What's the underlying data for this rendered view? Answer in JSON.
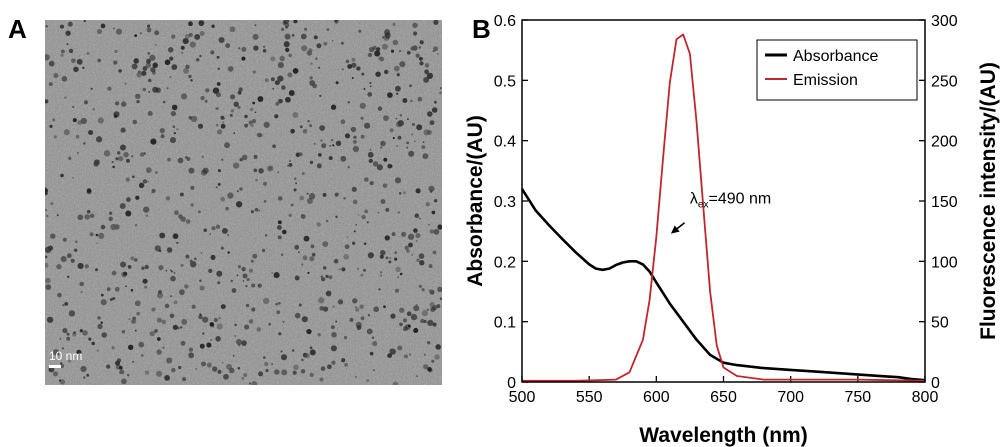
{
  "panels": {
    "a_label": "A",
    "b_label": "B"
  },
  "tem_image": {
    "scale_bar_text": "10 nm"
  },
  "chart_data": {
    "type": "line",
    "xlabel": "Wavelength (nm)",
    "ylabel_left": "Absorbance/(AU)",
    "ylabel_right": "Fluorescence intensity/(AU)",
    "xlim": [
      500,
      800
    ],
    "ylim_left": [
      0,
      0.6
    ],
    "ylim_right": [
      0,
      300
    ],
    "x_ticks": [
      500,
      550,
      600,
      650,
      700,
      750,
      800
    ],
    "y_left_ticks": [
      0,
      0.1,
      0.2,
      0.3,
      0.4,
      0.5,
      0.6
    ],
    "y_left_tick_labels": [
      "0",
      "0.1",
      "0.2",
      "0.3",
      "0.4",
      "0.5",
      "0.6"
    ],
    "y_right_ticks": [
      0,
      50,
      100,
      150,
      200,
      250,
      300
    ],
    "legend_position": "top-right",
    "annotation": {
      "text_main": "λ",
      "text_sub": "ex",
      "text_rest": "=490 nm"
    },
    "series": [
      {
        "name": "Absorbance",
        "axis": "left",
        "color": "#000000",
        "x": [
          500,
          510,
          520,
          530,
          540,
          550,
          555,
          560,
          565,
          570,
          575,
          580,
          585,
          590,
          595,
          600,
          610,
          620,
          630,
          640,
          650,
          660,
          680,
          700,
          720,
          740,
          760,
          780,
          790,
          800
        ],
        "y": [
          0.32,
          0.285,
          0.26,
          0.237,
          0.215,
          0.195,
          0.188,
          0.186,
          0.188,
          0.194,
          0.198,
          0.2,
          0.2,
          0.195,
          0.183,
          0.165,
          0.13,
          0.1,
          0.07,
          0.045,
          0.032,
          0.028,
          0.023,
          0.02,
          0.017,
          0.014,
          0.011,
          0.008,
          0.005,
          0.003
        ]
      },
      {
        "name": "Emission",
        "axis": "right",
        "color": "#c0262d",
        "x": [
          500,
          540,
          570,
          580,
          590,
          595,
          600,
          605,
          610,
          615,
          620,
          625,
          630,
          635,
          640,
          645,
          650,
          660,
          680,
          700,
          750,
          800
        ],
        "y": [
          1,
          1,
          2,
          8,
          35,
          68,
          120,
          185,
          248,
          284,
          288,
          272,
          215,
          145,
          75,
          30,
          12,
          5,
          2,
          2,
          2,
          1
        ]
      }
    ]
  }
}
